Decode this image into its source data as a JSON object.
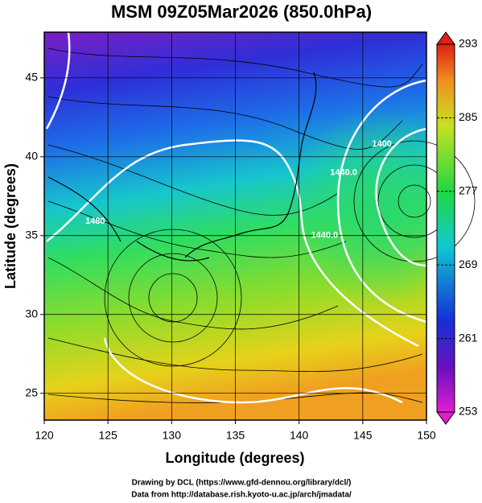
{
  "title": "MSM 09Z05Mar2026 (850.0hPa)",
  "map": {
    "xlabel": "Longitude (degrees)",
    "ylabel": "Latitude  (degrees)",
    "xlim": [
      120,
      150
    ],
    "ylim": [
      23.3,
      47.9
    ],
    "xticks": [
      120,
      125,
      130,
      135,
      140,
      145,
      150
    ],
    "yticks": [
      25,
      30,
      35,
      40,
      45
    ],
    "contour_labels": [
      {
        "text": "1480",
        "lon": 124,
        "lat": 35.9
      },
      {
        "text": "1440.0",
        "lon": 143.5,
        "lat": 39
      },
      {
        "text": "1440.0",
        "lon": 142,
        "lat": 35
      },
      {
        "text": "1400",
        "lon": 146.5,
        "lat": 40.8
      }
    ]
  },
  "colorbar": {
    "lim": [
      253,
      293
    ],
    "ticks": [
      253,
      261,
      269,
      277,
      285,
      293
    ]
  },
  "credits": [
    "Drawing by DCL (https://www.gfd-dennou.org/library/dcl/)",
    "Data from http://database.rish.kyoto-u.ac.jp/arch/jmadata/"
  ]
}
